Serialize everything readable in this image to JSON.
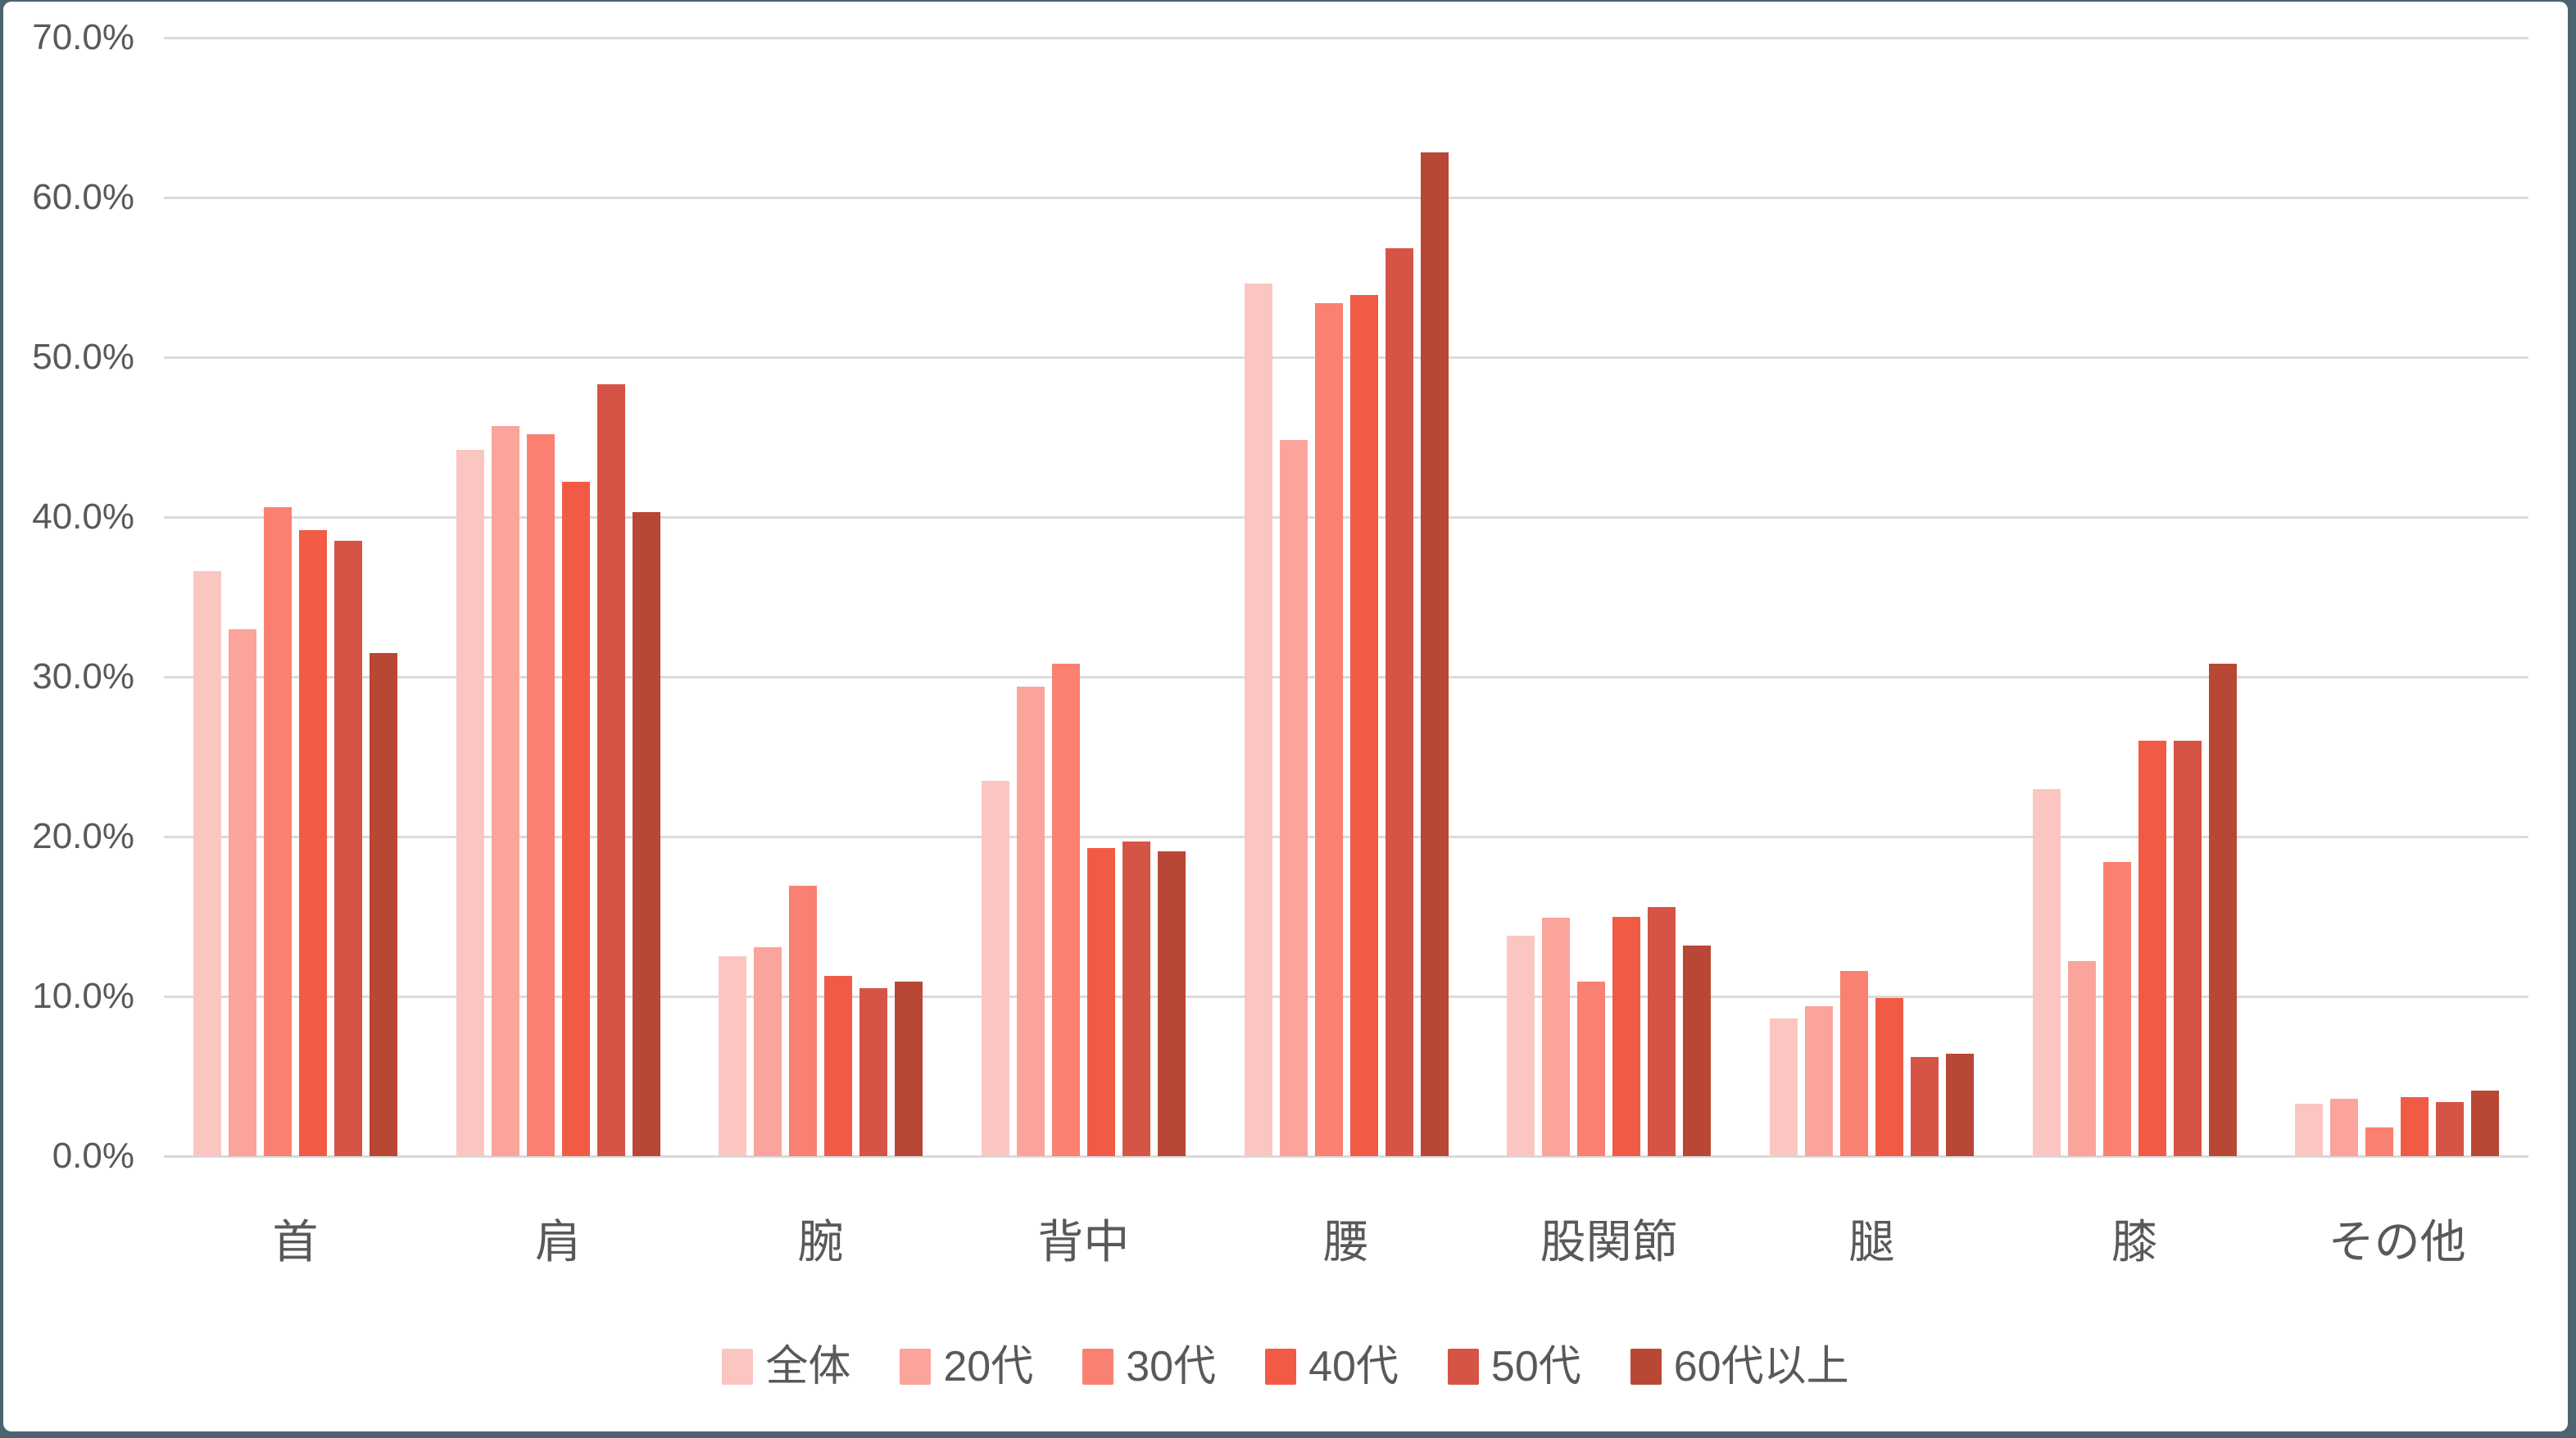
{
  "theme": {
    "frame_color": "#4C6370",
    "background_color": "#FFFFFF",
    "grid_color": "#DBDBDB",
    "axis_line_color": "#D9D9D9",
    "text_color": "#595959"
  },
  "chart_data": {
    "type": "bar",
    "title": "",
    "xlabel": "",
    "ylabel": "",
    "categories": [
      "首",
      "肩",
      "腕",
      "背中",
      "腰",
      "股関節",
      "腿",
      "膝",
      "その他"
    ],
    "series": [
      {
        "name": "全体",
        "color": "#FBC6C1",
        "values": [
          36.6,
          44.2,
          12.5,
          23.5,
          54.6,
          13.8,
          8.6,
          23.0,
          3.3
        ]
      },
      {
        "name": "20代",
        "color": "#FAA49C",
        "values": [
          33.0,
          45.7,
          13.1,
          29.4,
          44.8,
          14.9,
          9.4,
          12.2,
          3.6
        ]
      },
      {
        "name": "30代",
        "color": "#FA8072",
        "values": [
          40.6,
          45.2,
          16.9,
          30.8,
          53.4,
          10.9,
          11.6,
          18.4,
          1.8
        ]
      },
      {
        "name": "40代",
        "color": "#F15B46",
        "values": [
          39.2,
          42.2,
          11.3,
          19.3,
          53.9,
          15.0,
          9.9,
          26.0,
          3.7
        ]
      },
      {
        "name": "50代",
        "color": "#D65446",
        "values": [
          38.5,
          48.3,
          10.5,
          19.7,
          56.8,
          15.6,
          6.2,
          26.0,
          3.4
        ]
      },
      {
        "name": "60代以上",
        "color": "#B94735",
        "values": [
          31.5,
          40.3,
          10.9,
          19.1,
          62.8,
          13.2,
          6.4,
          30.8,
          4.1
        ]
      }
    ],
    "y_axis": {
      "min": 0,
      "max": 70,
      "step": 10,
      "tick_labels": [
        "0.0%",
        "10.0%",
        "20.0%",
        "30.0%",
        "40.0%",
        "50.0%",
        "60.0%",
        "70.0%"
      ]
    },
    "grid": true,
    "legend_position": "bottom",
    "legend_labels": [
      "全体",
      "20代",
      "30代",
      "40代",
      "50代",
      "60代以上"
    ]
  }
}
